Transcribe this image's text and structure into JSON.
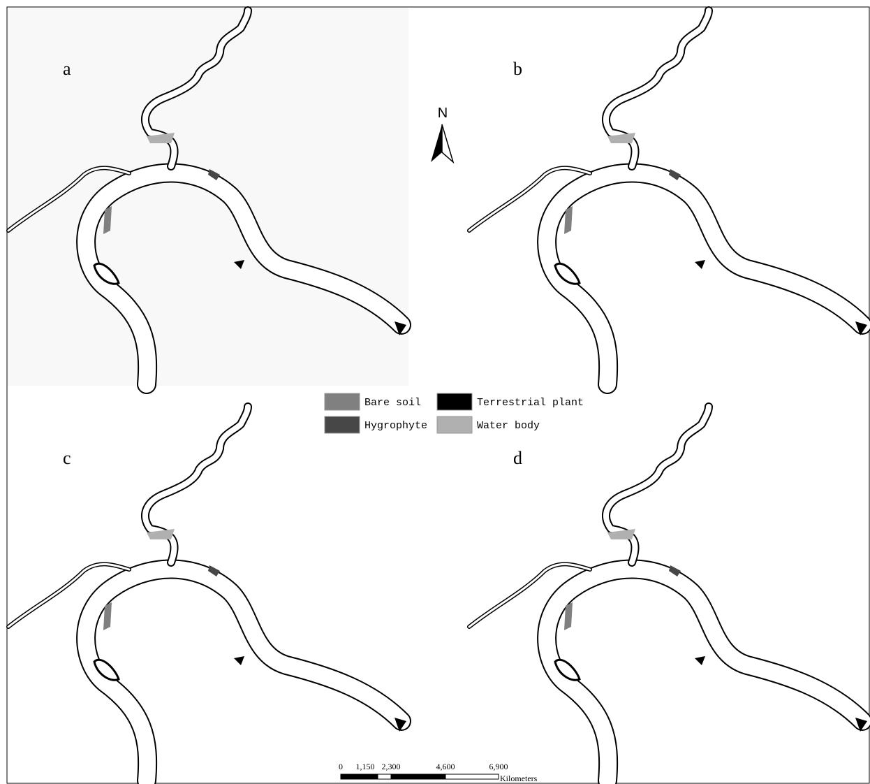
{
  "panels": [
    {
      "label": "a"
    },
    {
      "label": "b"
    },
    {
      "label": "c"
    },
    {
      "label": "d"
    }
  ],
  "north_arrow": {
    "label": "N"
  },
  "legend": [
    {
      "label": "Bare soil",
      "color": "#808080"
    },
    {
      "label": "Terrestrial plant",
      "color": "#000000"
    },
    {
      "label": "Hygrophyte",
      "color": "#474747"
    },
    {
      "label": "Water body",
      "color": "#b0b0b0"
    }
  ],
  "scale_bar": {
    "ticks": [
      "0",
      "1,150",
      "2,300",
      "4,600",
      "6,900"
    ],
    "unit": "Kilometers"
  }
}
